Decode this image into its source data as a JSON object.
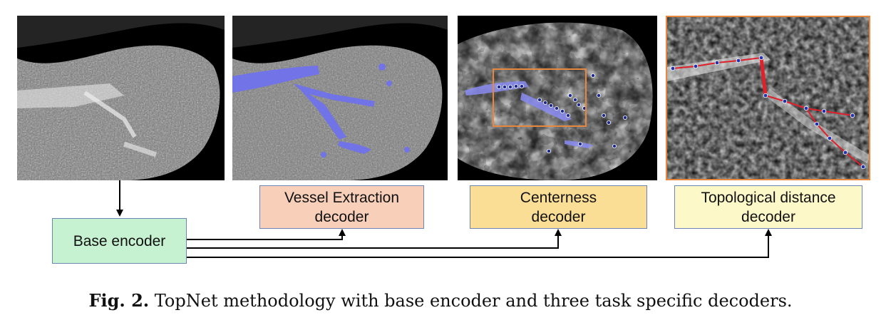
{
  "panels": [
    {
      "id": "ct-raw"
    },
    {
      "id": "ct-vessel-overlay"
    },
    {
      "id": "ct-centerness"
    },
    {
      "id": "ct-topology-zoom"
    }
  ],
  "boxes": {
    "base_encoder": {
      "label": "Base encoder",
      "fill": "#c6f2d1"
    },
    "vessel_decoder": {
      "label": "Vessel Extraction\ndecoder",
      "fill": "#f8cfb9"
    },
    "centerness_decoder": {
      "label": "Centerness\ndecoder",
      "fill": "#fbde95"
    },
    "topology_decoder": {
      "label": "Topological distance\ndecoder",
      "fill": "#fcf8c7"
    }
  },
  "colors": {
    "vessel_overlay": "#6e71f0",
    "zoom_frame": "#e8883e",
    "path_red": "#e0202a",
    "node_blue": "#2233aa",
    "box_border": "#6b86b5"
  },
  "caption": {
    "label": "Fig. 2.",
    "text": " TopNet methodology with base encoder and three task specific decoders."
  }
}
